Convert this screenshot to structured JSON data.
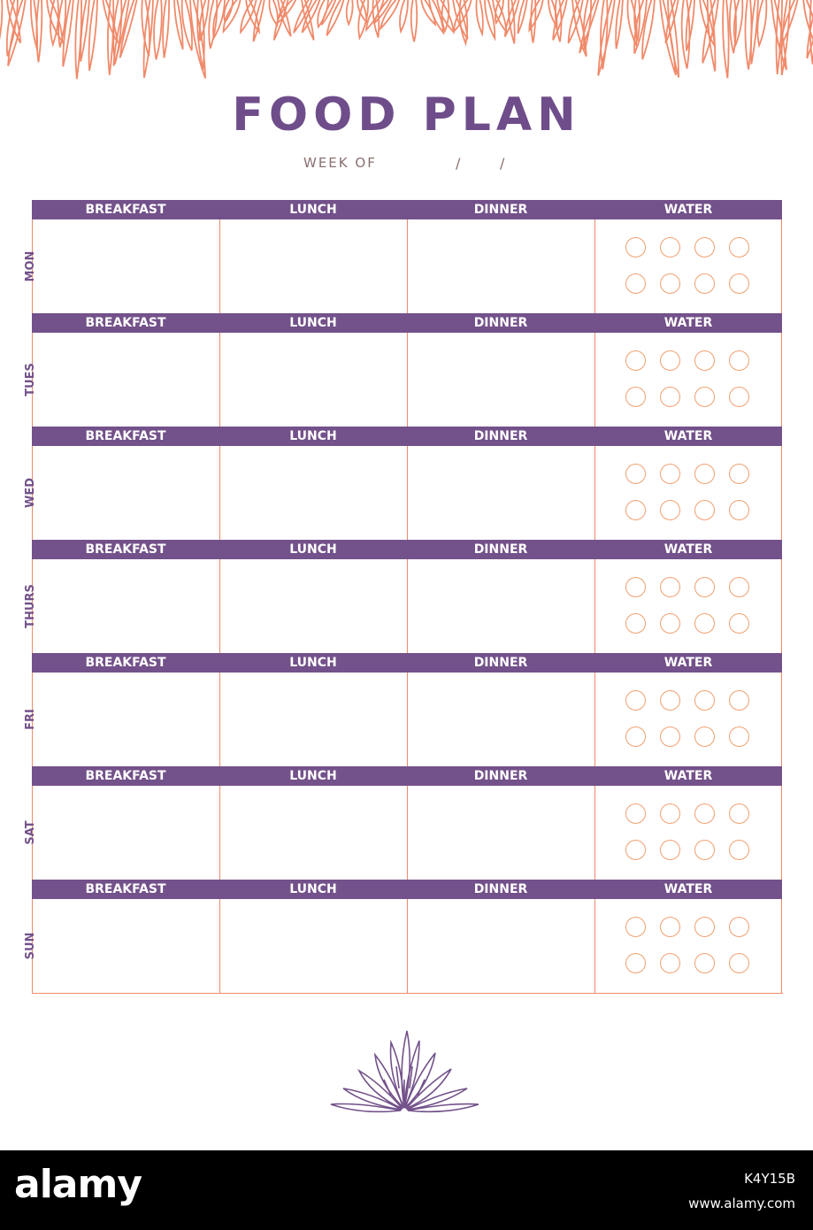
{
  "title": "FOOD PLAN",
  "week_of_label": "WEEK OF",
  "date_separator": "/",
  "columns": [
    "BREAKFAST",
    "LUNCH",
    "DINNER",
    "WATER"
  ],
  "days": [
    "MON",
    "TUES",
    "WED",
    "THURS",
    "FRI",
    "SAT",
    "SUN"
  ],
  "water_circles_per_day": 8,
  "colors": {
    "accent_purple": "#73518a",
    "title_purple": "#6f4d8a",
    "border_orange": "#f08a6a",
    "circle_orange": "#f0a070",
    "leaf_coral": "#f08a6a"
  },
  "footer": {
    "brand": "alamy",
    "image_id": "K4Y15B",
    "url": "www.alamy.com"
  }
}
